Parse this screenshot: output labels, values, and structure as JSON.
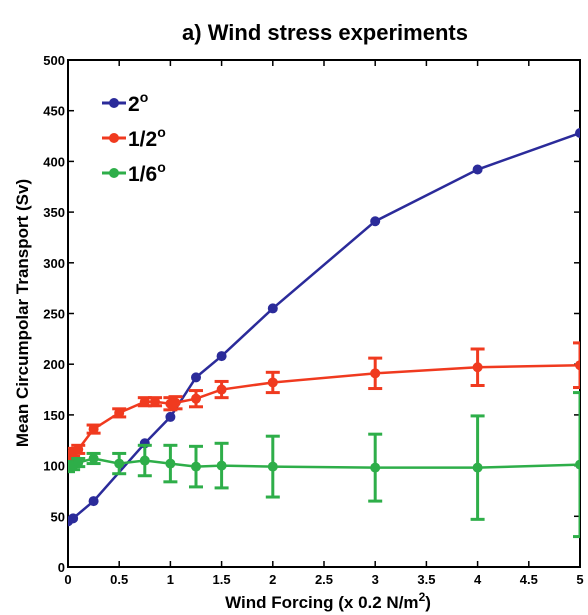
{
  "chart_data": {
    "type": "line",
    "title": "a) Wind stress experiments",
    "xlabel": "Wind Forcing (x 0.2 N/m",
    "xlabel_sup": "2",
    "xlabel_end": ")",
    "ylabel": "Mean Circumpolar Transport (Sv)",
    "xlim": [
      0,
      5
    ],
    "ylim": [
      0,
      500
    ],
    "xticks": [
      0,
      0.5,
      1,
      1.5,
      2,
      2.5,
      3,
      3.5,
      4,
      4.5,
      5
    ],
    "xtick_labels": [
      "0",
      "0.5",
      "1",
      "1.5",
      "2",
      "2.5",
      "3",
      "3.5",
      "4",
      "4.5",
      "5"
    ],
    "yticks": [
      0,
      50,
      100,
      150,
      200,
      250,
      300,
      350,
      400,
      450,
      500
    ],
    "ytick_labels": [
      "0",
      "50",
      "100",
      "150",
      "200",
      "250",
      "300",
      "350",
      "400",
      "450",
      "500"
    ],
    "grid": false,
    "legend_position": "top-left",
    "series": [
      {
        "name": "2",
        "name_sup": "o",
        "color": "#2b2b9a",
        "x": [
          0,
          0.05,
          0.25,
          0.75,
          1,
          1.25,
          1.5,
          2,
          3,
          4,
          5
        ],
        "y": [
          45,
          48,
          65,
          122,
          148,
          187,
          208,
          255,
          341,
          392,
          428
        ]
      },
      {
        "name": "1/2",
        "name_sup": "o",
        "color": "#f03a1f",
        "x": [
          0,
          0.05,
          0.1,
          0.25,
          0.5,
          0.75,
          0.85,
          1,
          1.05,
          1.25,
          1.5,
          2,
          3,
          4,
          5
        ],
        "y": [
          110,
          113,
          116,
          136,
          152,
          163,
          163,
          161,
          162,
          166,
          175,
          182,
          191,
          197,
          199
        ],
        "err": [
          4,
          4,
          4,
          4,
          4,
          4,
          4,
          6,
          6,
          8,
          8,
          10,
          15,
          18,
          22
        ]
      },
      {
        "name": "1/6",
        "name_sup": "o",
        "color": "#2eae49",
        "x": [
          0,
          0.05,
          0.1,
          0.25,
          0.5,
          0.75,
          1,
          1.25,
          1.5,
          2,
          3,
          4,
          5
        ],
        "y": [
          98,
          100,
          103,
          107,
          102,
          105,
          102,
          99,
          100,
          99,
          98,
          98,
          101
        ],
        "err": [
          4,
          4,
          4,
          5,
          10,
          15,
          18,
          20,
          22,
          30,
          33,
          51,
          71
        ]
      }
    ]
  }
}
